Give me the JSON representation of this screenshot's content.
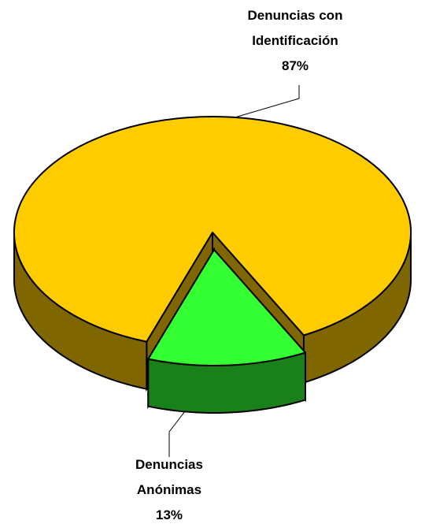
{
  "chart_data": {
    "type": "pie",
    "categories": [
      "Denuncias con Identificación",
      "Denuncias Anónimas"
    ],
    "values": [
      87,
      13
    ],
    "value_labels": [
      "87%",
      "13%"
    ],
    "colors": [
      "#ffcc00",
      "#33ff33"
    ]
  }
}
